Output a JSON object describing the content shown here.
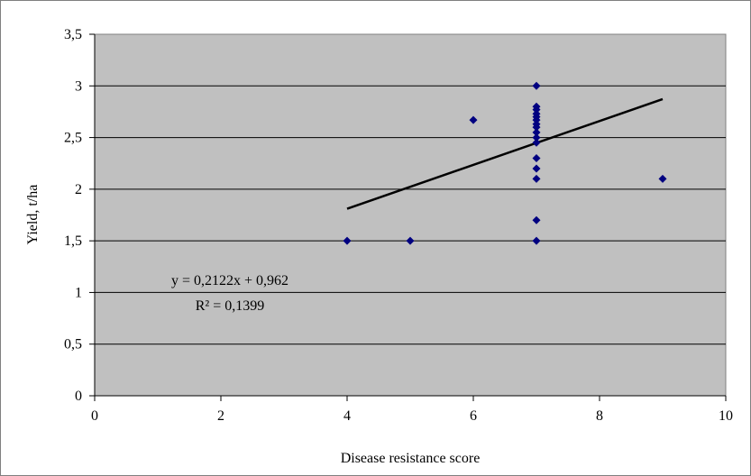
{
  "chart_data": {
    "type": "scatter",
    "title": "",
    "xlabel": "Disease resistance score",
    "ylabel": "Yield, t/ha",
    "xlim": [
      0,
      10
    ],
    "ylim": [
      0,
      3.5
    ],
    "x_ticks": [
      "0",
      "2",
      "4",
      "6",
      "8",
      "10"
    ],
    "y_ticks": [
      "0",
      "0,5",
      "1",
      "1,5",
      "2",
      "2,5",
      "3",
      "3,5"
    ],
    "grid": "horizontal",
    "plot_background": "#c0c0c0",
    "marker_color": "#000080",
    "trendline_color": "#000000",
    "points": [
      {
        "x": 4,
        "y": 1.5
      },
      {
        "x": 5,
        "y": 1.5
      },
      {
        "x": 6,
        "y": 2.67
      },
      {
        "x": 7,
        "y": 3.0
      },
      {
        "x": 7,
        "y": 2.8
      },
      {
        "x": 7,
        "y": 2.77
      },
      {
        "x": 7,
        "y": 2.73
      },
      {
        "x": 7,
        "y": 2.7
      },
      {
        "x": 7,
        "y": 2.67
      },
      {
        "x": 7,
        "y": 2.63
      },
      {
        "x": 7,
        "y": 2.6
      },
      {
        "x": 7,
        "y": 2.55
      },
      {
        "x": 7,
        "y": 2.5
      },
      {
        "x": 7,
        "y": 2.45
      },
      {
        "x": 7,
        "y": 2.3
      },
      {
        "x": 7,
        "y": 2.2
      },
      {
        "x": 7,
        "y": 2.1
      },
      {
        "x": 7,
        "y": 1.7
      },
      {
        "x": 7,
        "y": 1.5
      },
      {
        "x": 9,
        "y": 2.1
      }
    ],
    "trendline": {
      "slope": 0.2122,
      "intercept": 0.962,
      "x_range": [
        4,
        9
      ],
      "equation": "y = 0,2122x + 0,962",
      "r_squared": "R² = 0,1399"
    }
  }
}
